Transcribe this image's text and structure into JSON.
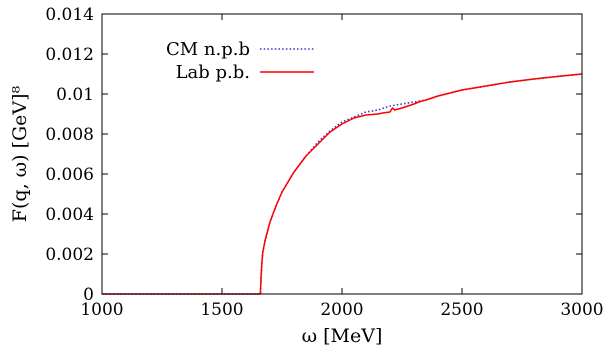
{
  "chart_data": {
    "type": "line",
    "xlabel": "ω [MeV]",
    "ylabel": "F(q, ω) [GeV]⁸",
    "xlim": [
      1000,
      3000
    ],
    "ylim": [
      0,
      0.014
    ],
    "x_ticks": [
      "1000",
      "1500",
      "2000",
      "2500",
      "3000"
    ],
    "y_ticks": [
      "0",
      "0.002",
      "0.004",
      "0.006",
      "0.008",
      "0.01",
      "0.012",
      "0.014"
    ],
    "legend_position": "top-left",
    "grid": false,
    "series": [
      {
        "name": "CM n.p.b",
        "color": "#3333cc",
        "style": "dotted",
        "x": [
          1000,
          1200,
          1400,
          1600,
          1660,
          1663,
          1666,
          1670,
          1680,
          1700,
          1725,
          1750,
          1800,
          1850,
          1900,
          1950,
          2000,
          2050,
          2100,
          2150,
          2200,
          2250,
          2300,
          2350,
          2400,
          2500,
          2600,
          2700,
          2800,
          2900,
          3000
        ],
        "y": [
          0,
          0,
          0,
          0,
          0,
          0.0009,
          0.0015,
          0.0021,
          0.0027,
          0.0036,
          0.0044,
          0.0051,
          0.0061,
          0.0069,
          0.0076,
          0.00815,
          0.0086,
          0.00885,
          0.0091,
          0.0092,
          0.0094,
          0.0095,
          0.0096,
          0.0097,
          0.0099,
          0.0102,
          0.0104,
          0.0106,
          0.01075,
          0.01088,
          0.011
        ]
      },
      {
        "name": "Lab p.b.",
        "color": "#ff0000",
        "style": "solid",
        "x": [
          1000,
          1200,
          1400,
          1600,
          1660,
          1663,
          1666,
          1670,
          1680,
          1700,
          1725,
          1750,
          1800,
          1850,
          1900,
          1950,
          2000,
          2050,
          2100,
          2150,
          2170,
          2200,
          2210,
          2220,
          2250,
          2300,
          2320,
          2350,
          2400,
          2500,
          2600,
          2700,
          2800,
          2900,
          3000
        ],
        "y": [
          0,
          0,
          0,
          0,
          0,
          0.0009,
          0.0015,
          0.0021,
          0.0027,
          0.0036,
          0.0044,
          0.0051,
          0.0061,
          0.0069,
          0.0075,
          0.0081,
          0.0085,
          0.0088,
          0.00895,
          0.009,
          0.00905,
          0.0091,
          0.0093,
          0.0092,
          0.0093,
          0.0095,
          0.0096,
          0.0097,
          0.0099,
          0.0102,
          0.0104,
          0.0106,
          0.01075,
          0.01088,
          0.011
        ]
      }
    ]
  }
}
